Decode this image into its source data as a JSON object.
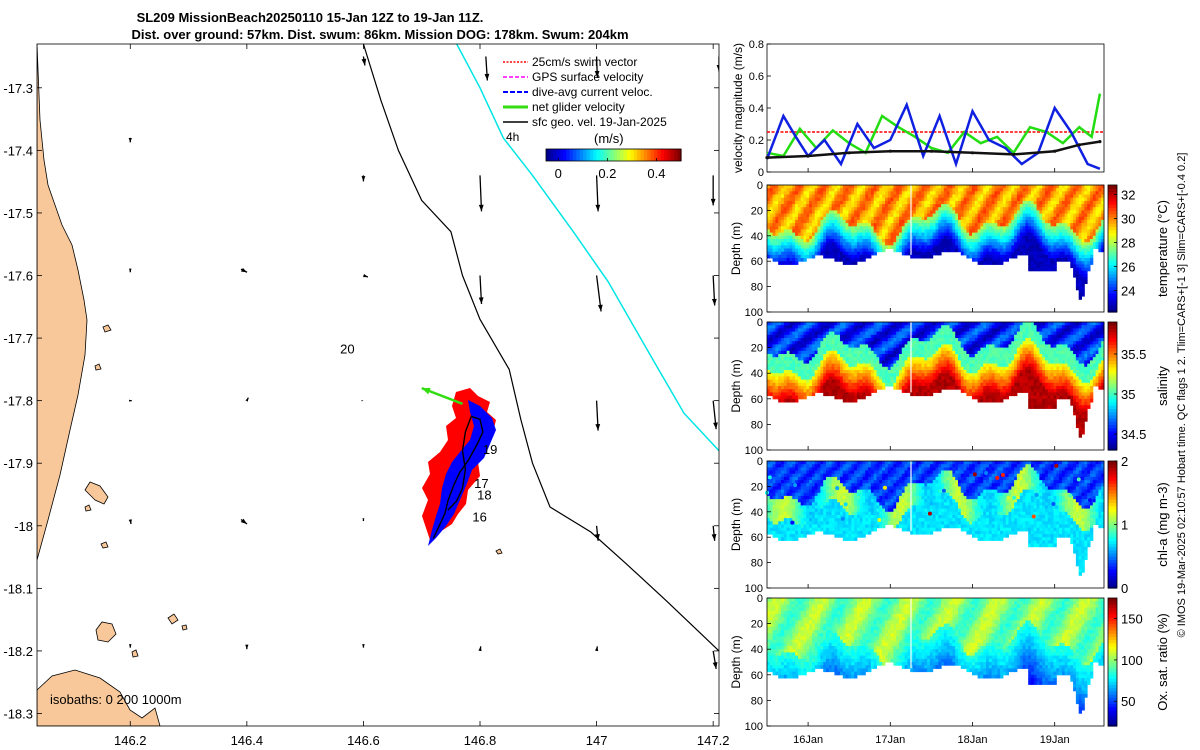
{
  "title_line1": "SL209 MissionBeach20250110 15-Jan 12Z to 19-Jan 11Z.",
  "title_line2": "Dist. over ground: 57km. Dist. swum: 86km. Mission DOG: 178km. Swum: 204km",
  "side_note": "© IMOS 19-Mar-2025 02:10:57 Hobart time. QC flags 1  2. Tlim=CARS+[-1 3] Slim=CARS+[-0.4 0.2]",
  "colors": {
    "land": "#f9c89a",
    "track_red": "#ff0000",
    "track_blue": "#0000ff",
    "isobath_cyan": "#00e5e5",
    "net_velocity": "#33dd11",
    "gps_velocity": "#ff00ff",
    "swim_vector": "#ff0000"
  },
  "chart_data": [
    {
      "type": "map",
      "xlim": [
        146.04,
        147.21
      ],
      "ylim": [
        -18.32,
        -17.23
      ],
      "xticks": [
        146.2,
        146.4,
        146.6,
        146.8,
        147,
        147.2
      ],
      "xtick_labels": [
        "146.2",
        "146.4",
        "146.6",
        "146.8",
        "147",
        "147.2"
      ],
      "yticks": [
        -17.3,
        -17.4,
        -17.5,
        -17.6,
        -17.7,
        -17.8,
        -17.9,
        -18.0,
        -18.1,
        -18.2,
        -18.3
      ],
      "ytick_labels": [
        "-17.3",
        "-17.4",
        "-17.5",
        "-17.6",
        "-17.7",
        "-17.8",
        "-17.9",
        "-18",
        "-18.1",
        "-18.2",
        "-18.3"
      ],
      "day_labels": [
        {
          "text": "20",
          "lon": 146.56,
          "lat": -17.725
        },
        {
          "text": "19",
          "lon": 146.805,
          "lat": -17.885
        },
        {
          "text": "18",
          "lon": 146.795,
          "lat": -17.958
        },
        {
          "text": "17",
          "lon": 146.79,
          "lat": -17.94
        },
        {
          "text": "16",
          "lon": 146.787,
          "lat": -17.993
        }
      ],
      "isobaths_label": "isobaths: 0  200  1000m",
      "colorbar": {
        "label": "(m/s)",
        "ticks": [
          "0",
          "0.2",
          "0.4"
        ],
        "range": [
          -0.05,
          0.5
        ]
      },
      "legend": [
        "25cm/s swim vector",
        "GPS surface velocity",
        "dive-avg current veloc.",
        "net glider velocity",
        "sfc geo. vel. 19-Jan-2025"
      ],
      "legend_extra": "4h",
      "geo_vectors": [
        {
          "lon": 146.6,
          "lat": -17.25,
          "u": 0.01,
          "v": -0.06
        },
        {
          "lon": 146.81,
          "lat": -17.25,
          "u": 0.01,
          "v": -0.16
        },
        {
          "lon": 147.0,
          "lat": -17.25,
          "u": 0.005,
          "v": -0.14
        },
        {
          "lon": 147.21,
          "lat": -17.25,
          "u": 0.0,
          "v": -0.1
        },
        {
          "lon": 146.2,
          "lat": -17.38,
          "u": 0.0,
          "v": -0.03
        },
        {
          "lon": 146.6,
          "lat": -17.44,
          "u": 0.0,
          "v": -0.04
        },
        {
          "lon": 146.8,
          "lat": -17.44,
          "u": 0.01,
          "v": -0.24
        },
        {
          "lon": 147.0,
          "lat": -17.44,
          "u": 0.01,
          "v": -0.24
        },
        {
          "lon": 147.2,
          "lat": -17.44,
          "u": 0.0,
          "v": -0.2
        },
        {
          "lon": 146.2,
          "lat": -17.59,
          "u": 0.0,
          "v": -0.02
        },
        {
          "lon": 146.39,
          "lat": -17.59,
          "u": 0.04,
          "v": -0.02
        },
        {
          "lon": 146.6,
          "lat": -17.6,
          "u": 0.03,
          "v": -0.01
        },
        {
          "lon": 146.8,
          "lat": -17.6,
          "u": 0.01,
          "v": -0.19
        },
        {
          "lon": 147.0,
          "lat": -17.6,
          "u": 0.03,
          "v": -0.24
        },
        {
          "lon": 147.2,
          "lat": -17.6,
          "u": 0.01,
          "v": -0.2
        },
        {
          "lon": 146.2,
          "lat": -17.8,
          "u": 0.01,
          "v": 0.0
        },
        {
          "lon": 146.4,
          "lat": -17.8,
          "u": 0.01,
          "v": 0.02
        },
        {
          "lon": 146.6,
          "lat": -17.8,
          "u": 0.0,
          "v": 0.0
        },
        {
          "lon": 147.0,
          "lat": -17.8,
          "u": 0.01,
          "v": -0.2
        },
        {
          "lon": 147.2,
          "lat": -17.8,
          "u": 0.02,
          "v": -0.19
        },
        {
          "lon": 146.2,
          "lat": -17.99,
          "u": 0.005,
          "v": -0.03
        },
        {
          "lon": 146.39,
          "lat": -17.99,
          "u": 0.04,
          "v": -0.03
        },
        {
          "lon": 146.6,
          "lat": -17.99,
          "u": 0.0,
          "v": -0.01
        },
        {
          "lon": 147.0,
          "lat": -18.0,
          "u": 0.01,
          "v": -0.1
        },
        {
          "lon": 147.2,
          "lat": -18.0,
          "u": 0.01,
          "v": -0.1
        },
        {
          "lon": 146.2,
          "lat": -18.19,
          "u": 0.0,
          "v": -0.02
        },
        {
          "lon": 146.4,
          "lat": -18.19,
          "u": 0.0,
          "v": -0.03
        },
        {
          "lon": 146.6,
          "lat": -18.19,
          "u": 0.0,
          "v": -0.02
        },
        {
          "lon": 146.8,
          "lat": -18.2,
          "u": 0.005,
          "v": 0.03
        },
        {
          "lon": 147.0,
          "lat": -18.2,
          "u": 0.005,
          "v": 0.03
        },
        {
          "lon": 147.2,
          "lat": -18.2,
          "u": 0.02,
          "v": -0.12
        }
      ],
      "isobath_200": [
        [
          146.6,
          -17.23
        ],
        [
          146.63,
          -17.32
        ],
        [
          146.66,
          -17.4
        ],
        [
          146.7,
          -17.48
        ],
        [
          146.75,
          -17.53
        ],
        [
          146.77,
          -17.6
        ],
        [
          146.8,
          -17.67
        ],
        [
          146.85,
          -17.75
        ],
        [
          146.87,
          -17.83
        ],
        [
          146.89,
          -17.9
        ],
        [
          146.92,
          -17.97
        ],
        [
          146.99,
          -18.01
        ],
        [
          147.05,
          -18.06
        ],
        [
          147.12,
          -18.12
        ],
        [
          147.21,
          -18.2
        ]
      ],
      "isobath_1000": [
        [
          146.76,
          -17.23
        ],
        [
          146.8,
          -17.3
        ],
        [
          146.84,
          -17.38
        ],
        [
          146.89,
          -17.44
        ],
        [
          146.96,
          -17.53
        ],
        [
          147.02,
          -17.61
        ],
        [
          147.1,
          -17.74
        ],
        [
          147.15,
          -17.82
        ],
        [
          147.21,
          -17.88
        ]
      ],
      "track": [
        [
          146.72,
          -18.02
        ],
        [
          146.73,
          -18.0
        ],
        [
          146.74,
          -17.98
        ],
        [
          146.745,
          -17.96
        ],
        [
          146.755,
          -17.935
        ],
        [
          146.765,
          -17.915
        ],
        [
          146.78,
          -17.895
        ],
        [
          146.795,
          -17.87
        ],
        [
          146.805,
          -17.85
        ],
        [
          146.8,
          -17.83
        ],
        [
          146.785,
          -17.825
        ],
        [
          146.775,
          -17.85
        ],
        [
          146.77,
          -17.88
        ],
        [
          146.775,
          -17.91
        ],
        [
          146.77,
          -17.94
        ],
        [
          146.76,
          -17.96
        ],
        [
          146.745,
          -17.975
        ]
      ],
      "net_velocity_arrow": {
        "from": [
          146.77,
          -17.805
        ],
        "to": [
          146.7,
          -17.78
        ]
      }
    },
    {
      "type": "line",
      "ylabel": "velocity magnitude (m/s)",
      "ylim": [
        0,
        0.8
      ],
      "yticks": [
        0,
        0.2,
        0.4,
        0.6,
        0.8
      ],
      "xlim": [
        15.5,
        19.6
      ],
      "series": [
        {
          "name": "25cm/s swim vector",
          "color": "#ff0000",
          "t": [
            15.5,
            19.6
          ],
          "values": [
            0.25,
            0.25
          ]
        },
        {
          "name": "net glider velocity",
          "color": "#22dd11",
          "t": [
            15.5,
            15.7,
            15.9,
            16.1,
            16.3,
            16.5,
            16.7,
            16.9,
            17.1,
            17.3,
            17.5,
            17.7,
            17.9,
            18.1,
            18.3,
            18.5,
            18.7,
            18.9,
            19.1,
            19.3,
            19.45,
            19.55
          ],
          "values": [
            0.12,
            0.1,
            0.27,
            0.15,
            0.26,
            0.18,
            0.12,
            0.35,
            0.28,
            0.22,
            0.15,
            0.12,
            0.25,
            0.18,
            0.22,
            0.12,
            0.28,
            0.25,
            0.18,
            0.28,
            0.22,
            0.49
          ]
        },
        {
          "name": "dive-avg current veloc.",
          "color": "#1020e0",
          "t": [
            15.5,
            15.7,
            15.85,
            16.0,
            16.2,
            16.4,
            16.6,
            16.8,
            17.0,
            17.2,
            17.4,
            17.6,
            17.8,
            18.0,
            18.2,
            18.4,
            18.6,
            18.8,
            19.0,
            19.2,
            19.4,
            19.55
          ],
          "values": [
            0.08,
            0.35,
            0.22,
            0.1,
            0.2,
            0.05,
            0.3,
            0.15,
            0.2,
            0.42,
            0.1,
            0.35,
            0.05,
            0.38,
            0.2,
            0.15,
            0.05,
            0.12,
            0.4,
            0.25,
            0.05,
            0.02
          ]
        },
        {
          "name": "sfc geo. vel.",
          "color": "#111111",
          "t": [
            15.5,
            16.0,
            16.5,
            17.0,
            17.5,
            18.0,
            18.5,
            19.0,
            19.3,
            19.55
          ],
          "values": [
            0.09,
            0.1,
            0.12,
            0.13,
            0.13,
            0.12,
            0.11,
            0.13,
            0.17,
            0.19
          ]
        }
      ]
    },
    {
      "type": "heatmap",
      "variable": "temperature",
      "colorbar_label": "temperature (°C)",
      "ylabel": "Depth (m)",
      "ylim": [
        0,
        100
      ],
      "yticks": [
        0,
        20,
        40,
        60,
        80,
        100
      ],
      "crange": [
        22.2,
        32.8
      ],
      "cticks": [
        24,
        26,
        28,
        30,
        32
      ]
    },
    {
      "type": "heatmap",
      "variable": "salinity",
      "colorbar_label": "salinity",
      "ylabel": "Depth (m)",
      "ylim": [
        0,
        100
      ],
      "yticks": [
        0,
        20,
        40,
        60,
        80,
        100
      ],
      "crange": [
        34.3,
        35.9
      ],
      "cticks": [
        34.5,
        35,
        35.5
      ]
    },
    {
      "type": "heatmap",
      "variable": "chl-a",
      "colorbar_label": "chl-a (mg m-3)",
      "ylabel": "Depth (m)",
      "ylim": [
        0,
        100
      ],
      "yticks": [
        0,
        20,
        40,
        60,
        80,
        100
      ],
      "crange": [
        0,
        2
      ],
      "cticks": [
        0,
        1,
        2
      ]
    },
    {
      "type": "heatmap",
      "variable": "oxygen",
      "colorbar_label": "Ox. sat. ratio (%)",
      "ylabel": "Depth (m)",
      "ylim": [
        0,
        100
      ],
      "yticks": [
        0,
        20,
        40,
        60,
        80,
        100
      ],
      "crange": [
        20,
        175
      ],
      "cticks": [
        50,
        100,
        150
      ],
      "xticks": [
        16,
        17,
        18,
        19
      ],
      "xtick_labels": [
        "16Jan",
        "17Jan",
        "18Jan",
        "19Jan"
      ]
    }
  ]
}
